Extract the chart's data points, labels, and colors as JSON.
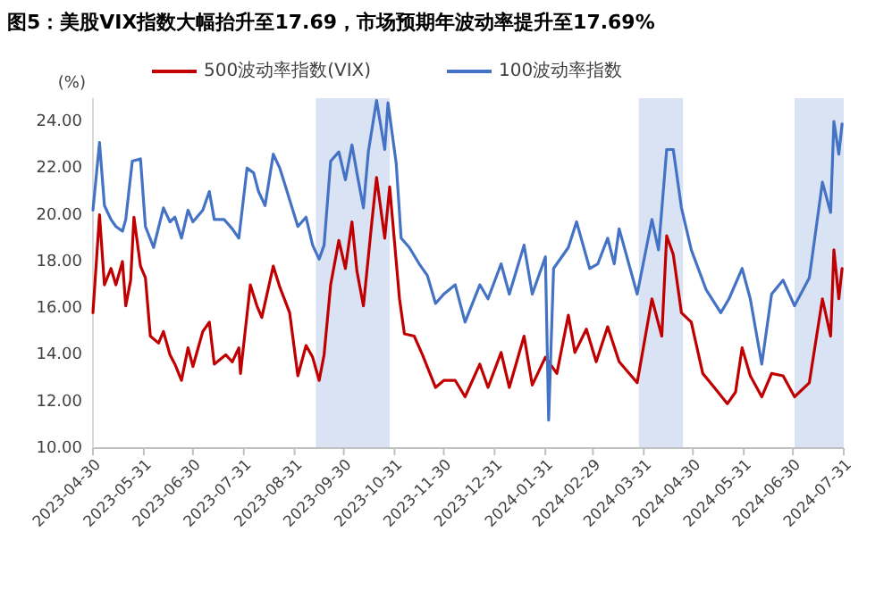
{
  "chart_data": {
    "type": "line",
    "title": "图5：美股VIX指数大幅抬升至17.69，市场预期年波动率提升至17.69%",
    "ylabel": "(%)",
    "legend": "top",
    "grid": false,
    "xlim": [
      "2023-04-30",
      "2024-07-31"
    ],
    "xticks": [
      "2023-04-30",
      "2023-05-31",
      "2023-06-30",
      "2023-07-31",
      "2023-08-31",
      "2023-09-30",
      "2023-10-31",
      "2023-11-30",
      "2023-12-31",
      "2024-01-31",
      "2024-02-29",
      "2024-03-31",
      "2024-04-30",
      "2024-05-31",
      "2024-06-30",
      "2024-07-31"
    ],
    "ylim": [
      10,
      25
    ],
    "yticks": [
      {
        "value": 10,
        "label": "10.00"
      },
      {
        "value": 12,
        "label": "12.00"
      },
      {
        "value": 14,
        "label": "14.00"
      },
      {
        "value": 16,
        "label": "16.00"
      },
      {
        "value": 18,
        "label": "18.00"
      },
      {
        "value": 20,
        "label": "20.00"
      },
      {
        "value": 22,
        "label": "22.00"
      },
      {
        "value": 24,
        "label": "24.00"
      }
    ],
    "bands": [
      {
        "axis": "x",
        "from": "2023-09-13",
        "to": "2023-10-28",
        "color": "#dae3f3"
      },
      {
        "axis": "x",
        "from": "2024-03-28",
        "to": "2024-04-24",
        "color": "#dae3f3"
      },
      {
        "axis": "x",
        "from": "2024-07-01",
        "to": "2024-07-31",
        "color": "#dae3f3"
      }
    ],
    "series": [
      {
        "name": "500波动率指数(VIX)",
        "color": "#c00000",
        "x": [
          "2023-04-30",
          "2023-05-04",
          "2023-05-07",
          "2023-05-11",
          "2023-05-14",
          "2023-05-18",
          "2023-05-20",
          "2023-05-23",
          "2023-05-25",
          "2023-05-29",
          "2023-06-01",
          "2023-06-04",
          "2023-06-09",
          "2023-06-12",
          "2023-06-16",
          "2023-06-19",
          "2023-06-23",
          "2023-06-27",
          "2023-06-30",
          "2023-07-06",
          "2023-07-10",
          "2023-07-13",
          "2023-07-20",
          "2023-07-24",
          "2023-07-28",
          "2023-07-29",
          "2023-08-04",
          "2023-08-08",
          "2023-08-11",
          "2023-08-18",
          "2023-08-22",
          "2023-08-28",
          "2023-09-02",
          "2023-09-07",
          "2023-09-11",
          "2023-09-15",
          "2023-09-18",
          "2023-09-22",
          "2023-09-27",
          "2023-10-01",
          "2023-10-05",
          "2023-10-08",
          "2023-10-12",
          "2023-10-17",
          "2023-10-20",
          "2023-10-25",
          "2023-10-28",
          "2023-11-03",
          "2023-11-06",
          "2023-11-12",
          "2023-11-17",
          "2023-11-25",
          "2023-11-30",
          "2023-12-07",
          "2023-12-13",
          "2023-12-22",
          "2023-12-27",
          "2024-01-04",
          "2024-01-09",
          "2024-01-18",
          "2024-01-23",
          "2024-01-31",
          "2024-02-02",
          "2024-02-07",
          "2024-02-14",
          "2024-02-18",
          "2024-02-25",
          "2024-03-02",
          "2024-03-09",
          "2024-03-16",
          "2024-03-27",
          "2024-04-05",
          "2024-04-11",
          "2024-04-14",
          "2024-04-18",
          "2024-04-23",
          "2024-04-29",
          "2024-05-06",
          "2024-05-13",
          "2024-05-21",
          "2024-05-26",
          "2024-05-30",
          "2024-06-04",
          "2024-06-11",
          "2024-06-17",
          "2024-06-24",
          "2024-07-01",
          "2024-07-10",
          "2024-07-18",
          "2024-07-23",
          "2024-07-25",
          "2024-07-28",
          "2024-07-30"
        ],
        "values": [
          15.8,
          20.0,
          17.0,
          17.7,
          17.0,
          18.0,
          16.1,
          17.2,
          19.9,
          17.8,
          17.3,
          14.8,
          14.5,
          15.0,
          14.0,
          13.6,
          12.9,
          14.3,
          13.5,
          15.0,
          15.4,
          13.6,
          14.0,
          13.7,
          14.3,
          13.2,
          17.0,
          16.1,
          15.6,
          17.8,
          16.9,
          15.8,
          13.1,
          14.4,
          13.9,
          12.9,
          14.0,
          17.0,
          18.9,
          17.7,
          19.7,
          17.6,
          16.1,
          19.6,
          21.6,
          19.0,
          21.2,
          16.4,
          14.9,
          14.8,
          14.0,
          12.6,
          12.9,
          12.9,
          12.2,
          13.6,
          12.6,
          14.1,
          12.6,
          14.8,
          12.7,
          13.9,
          13.7,
          13.2,
          15.7,
          14.1,
          15.1,
          13.7,
          15.2,
          13.7,
          12.8,
          16.4,
          14.8,
          19.1,
          18.3,
          15.8,
          15.4,
          13.2,
          12.6,
          11.9,
          12.4,
          14.3,
          13.1,
          12.2,
          13.2,
          13.1,
          12.2,
          12.8,
          16.4,
          14.8,
          18.5,
          16.4,
          17.7
        ]
      },
      {
        "name": "100波动率指数",
        "color": "#4472c4",
        "x": [
          "2023-04-30",
          "2023-05-04",
          "2023-05-07",
          "2023-05-11",
          "2023-05-14",
          "2023-05-18",
          "2023-05-20",
          "2023-05-24",
          "2023-05-29",
          "2023-06-01",
          "2023-06-06",
          "2023-06-12",
          "2023-06-16",
          "2023-06-19",
          "2023-06-23",
          "2023-06-27",
          "2023-06-30",
          "2023-07-06",
          "2023-07-10",
          "2023-07-13",
          "2023-07-19",
          "2023-07-24",
          "2023-07-28",
          "2023-08-02",
          "2023-08-06",
          "2023-08-09",
          "2023-08-13",
          "2023-08-18",
          "2023-08-22",
          "2023-08-26",
          "2023-09-02",
          "2023-09-07",
          "2023-09-11",
          "2023-09-15",
          "2023-09-18",
          "2023-09-22",
          "2023-09-27",
          "2023-10-01",
          "2023-10-05",
          "2023-10-08",
          "2023-10-12",
          "2023-10-15",
          "2023-10-20",
          "2023-10-25",
          "2023-10-27",
          "2023-11-01",
          "2023-11-04",
          "2023-11-09",
          "2023-11-15",
          "2023-11-20",
          "2023-11-25",
          "2023-11-30",
          "2023-12-07",
          "2023-12-13",
          "2023-12-22",
          "2023-12-27",
          "2024-01-04",
          "2024-01-09",
          "2024-01-18",
          "2024-01-23",
          "2024-01-31",
          "2024-02-02",
          "2024-02-05",
          "2024-02-14",
          "2024-02-19",
          "2024-02-27",
          "2024-03-03",
          "2024-03-09",
          "2024-03-13",
          "2024-03-16",
          "2024-03-27",
          "2024-04-05",
          "2024-04-09",
          "2024-04-14",
          "2024-04-18",
          "2024-04-23",
          "2024-04-29",
          "2024-05-08",
          "2024-05-17",
          "2024-05-22",
          "2024-05-30",
          "2024-06-04",
          "2024-06-11",
          "2024-06-17",
          "2024-06-24",
          "2024-07-01",
          "2024-07-10",
          "2024-07-18",
          "2024-07-23",
          "2024-07-25",
          "2024-07-28",
          "2024-07-30"
        ],
        "values": [
          20.2,
          23.1,
          20.4,
          19.8,
          19.5,
          19.3,
          19.8,
          22.3,
          22.4,
          19.5,
          18.6,
          20.3,
          19.7,
          19.9,
          19.0,
          20.2,
          19.7,
          20.2,
          21.0,
          19.8,
          19.8,
          19.4,
          19.0,
          22.0,
          21.8,
          21.0,
          20.4,
          22.6,
          22.0,
          21.1,
          19.5,
          19.9,
          18.7,
          18.1,
          18.7,
          22.3,
          22.7,
          21.5,
          23.0,
          21.8,
          20.3,
          22.7,
          24.9,
          22.8,
          24.8,
          22.2,
          19.0,
          18.6,
          17.9,
          17.4,
          16.2,
          16.6,
          17.0,
          15.4,
          17.0,
          16.4,
          17.9,
          16.6,
          18.7,
          16.6,
          18.2,
          11.2,
          17.7,
          18.6,
          19.7,
          17.7,
          17.9,
          19.0,
          17.9,
          19.4,
          16.6,
          19.8,
          18.5,
          22.8,
          22.8,
          20.3,
          18.5,
          16.8,
          15.8,
          16.4,
          17.7,
          16.4,
          13.6,
          16.6,
          17.2,
          16.1,
          17.3,
          21.4,
          20.1,
          24.0,
          22.6,
          23.9
        ]
      }
    ]
  }
}
